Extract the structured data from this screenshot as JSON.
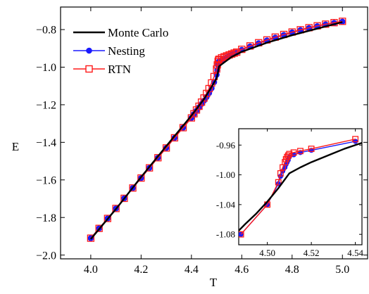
{
  "colors": {
    "mc": "#000000",
    "nest": "#1a1aff",
    "rtn": "#ff1a1a"
  },
  "chart_data": [
    {
      "type": "line",
      "xlabel": "T",
      "ylabel": "E",
      "xlim": [
        3.88,
        5.1
      ],
      "ylim": [
        -2.02,
        -0.68
      ],
      "xticks": [
        4.0,
        4.2,
        4.4,
        4.6,
        4.8,
        5.0
      ],
      "xtick_labels": [
        "4.0",
        "4.2",
        "4.4",
        "4.6",
        "4.8",
        "5.0"
      ],
      "yticks": [
        -2.0,
        -1.8,
        -1.6,
        -1.4,
        -1.2,
        -1.0,
        -0.8
      ],
      "ytick_labels": [
        "−2.0",
        "−1.8",
        "−1.6",
        "−1.4",
        "−1.2",
        "−1.0",
        "−0.8"
      ],
      "legend": {
        "placement": "top-left",
        "entries": [
          {
            "label": "Monte Carlo",
            "marker": "none"
          },
          {
            "label": "Nesting",
            "marker": "filled-circle"
          },
          {
            "label": "RTN",
            "marker": "open-square"
          }
        ]
      },
      "series": [
        {
          "name": "Monte Carlo",
          "marker": "none",
          "x": [
            4.0,
            4.1,
            4.2,
            4.3,
            4.4,
            4.45,
            4.48,
            4.5,
            4.505,
            4.51,
            4.53,
            4.56,
            4.6,
            4.7,
            4.8,
            4.9,
            5.0
          ],
          "y": [
            -1.915,
            -1.755,
            -1.585,
            -1.42,
            -1.258,
            -1.17,
            -1.105,
            -1.06,
            -1.03,
            -0.995,
            -0.975,
            -0.945,
            -0.918,
            -0.87,
            -0.83,
            -0.795,
            -0.76
          ]
        },
        {
          "name": "Nesting",
          "marker": "filled-circle",
          "x": [
            4.0,
            4.033,
            4.067,
            4.1,
            4.133,
            4.167,
            4.2,
            4.233,
            4.267,
            4.3,
            4.333,
            4.367,
            4.4,
            4.41,
            4.42,
            4.43,
            4.44,
            4.45,
            4.46,
            4.47,
            4.48,
            4.49,
            4.5,
            4.503,
            4.506,
            4.508,
            4.51,
            4.52,
            4.53,
            4.54,
            4.55,
            4.56,
            4.57,
            4.58,
            4.6,
            4.633,
            4.667,
            4.7,
            4.733,
            4.767,
            4.8,
            4.833,
            4.867,
            4.9,
            4.933,
            4.967,
            5.0
          ],
          "y": [
            -1.91,
            -1.858,
            -1.805,
            -1.752,
            -1.698,
            -1.643,
            -1.59,
            -1.536,
            -1.482,
            -1.43,
            -1.376,
            -1.322,
            -1.27,
            -1.25,
            -1.232,
            -1.214,
            -1.196,
            -1.178,
            -1.159,
            -1.138,
            -1.112,
            -1.08,
            -1.04,
            -1.016,
            -0.99,
            -0.978,
            -0.97,
            -0.962,
            -0.955,
            -0.948,
            -0.941,
            -0.934,
            -0.928,
            -0.922,
            -0.908,
            -0.89,
            -0.873,
            -0.858,
            -0.843,
            -0.829,
            -0.815,
            -0.803,
            -0.792,
            -0.782,
            -0.773,
            -0.765,
            -0.758
          ]
        },
        {
          "name": "RTN",
          "marker": "open-square",
          "x": [
            4.0,
            4.033,
            4.067,
            4.1,
            4.133,
            4.167,
            4.2,
            4.233,
            4.267,
            4.3,
            4.333,
            4.367,
            4.4,
            4.41,
            4.42,
            4.43,
            4.44,
            4.45,
            4.46,
            4.47,
            4.48,
            4.49,
            4.5,
            4.503,
            4.506,
            4.508,
            4.51,
            4.52,
            4.53,
            4.54,
            4.55,
            4.56,
            4.57,
            4.58,
            4.6,
            4.633,
            4.667,
            4.7,
            4.733,
            4.767,
            4.8,
            4.833,
            4.867,
            4.9,
            4.933,
            4.967,
            5.0
          ],
          "y": [
            -1.91,
            -1.858,
            -1.805,
            -1.752,
            -1.698,
            -1.643,
            -1.59,
            -1.536,
            -1.482,
            -1.43,
            -1.376,
            -1.322,
            -1.27,
            -1.248,
            -1.228,
            -1.208,
            -1.186,
            -1.164,
            -1.14,
            -1.114,
            -1.084,
            -1.05,
            -1.01,
            -0.988,
            -0.97,
            -0.962,
            -0.958,
            -0.95,
            -0.945,
            -0.94,
            -0.935,
            -0.93,
            -0.925,
            -0.92,
            -0.905,
            -0.887,
            -0.87,
            -0.855,
            -0.84,
            -0.826,
            -0.813,
            -0.801,
            -0.79,
            -0.78,
            -0.771,
            -0.763,
            -0.756
          ]
        }
      ]
    },
    {
      "type": "line",
      "inset": true,
      "xlim": [
        4.487,
        4.543
      ],
      "ylim": [
        -1.094,
        -0.938
      ],
      "xticks": [
        4.5,
        4.52,
        4.54
      ],
      "xtick_labels": [
        "4.50",
        "4.52",
        "4.54"
      ],
      "yticks": [
        -1.08,
        -1.04,
        -1.0,
        -0.96
      ],
      "ytick_labels": [
        "-1.08",
        "-1.04",
        "-1.00",
        "-0.96"
      ],
      "series": [
        {
          "name": "Monte Carlo",
          "marker": "none",
          "x": [
            4.487,
            4.49,
            4.495,
            4.5,
            4.505,
            4.51,
            4.515,
            4.52,
            4.525,
            4.53,
            4.535,
            4.54,
            4.543
          ],
          "y": [
            -1.075,
            -1.066,
            -1.052,
            -1.036,
            -1.018,
            -0.998,
            -0.99,
            -0.983,
            -0.977,
            -0.971,
            -0.965,
            -0.96,
            -0.957
          ]
        },
        {
          "name": "Nesting",
          "marker": "filled-circle",
          "x": [
            4.488,
            4.5,
            4.505,
            4.506,
            4.507,
            4.508,
            4.5085,
            4.509,
            4.5095,
            4.51,
            4.512,
            4.515,
            4.52,
            4.54
          ],
          "y": [
            -1.08,
            -1.04,
            -1.012,
            -1.002,
            -0.995,
            -0.99,
            -0.986,
            -0.983,
            -0.98,
            -0.976,
            -0.973,
            -0.97,
            -0.967,
            -0.955
          ]
        },
        {
          "name": "RTN",
          "marker": "open-square",
          "x": [
            4.488,
            4.5,
            4.505,
            4.506,
            4.507,
            4.508,
            4.5085,
            4.509,
            4.5095,
            4.51,
            4.512,
            4.515,
            4.52,
            4.54
          ],
          "y": [
            -1.08,
            -1.04,
            -1.01,
            -0.998,
            -0.99,
            -0.983,
            -0.979,
            -0.976,
            -0.974,
            -0.972,
            -0.97,
            -0.968,
            -0.965,
            -0.952
          ]
        }
      ]
    }
  ]
}
